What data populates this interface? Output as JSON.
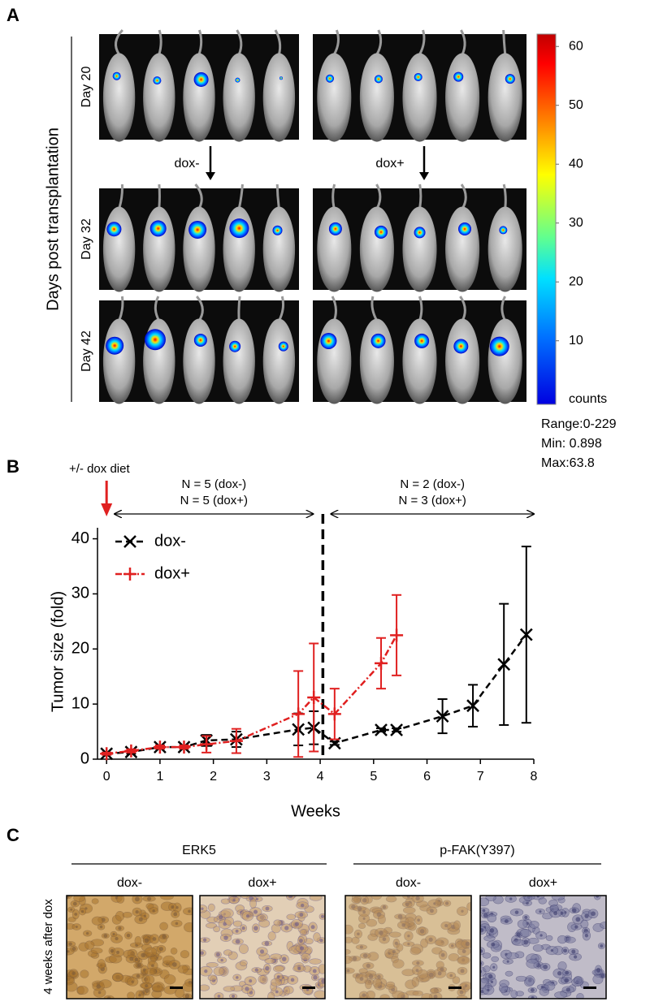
{
  "panel_labels": [
    "A",
    "B",
    "C"
  ],
  "panel_a": {
    "y_label": "Days post transplantation",
    "rows": [
      "Day 20",
      "Day 32",
      "Day 42"
    ],
    "treatments": [
      "dox-",
      "dox+"
    ],
    "colorbar": {
      "label": "counts",
      "ticks": [
        10,
        20,
        30,
        40,
        50,
        60
      ],
      "lim": [
        -0.8,
        62.1
      ]
    },
    "stats": [
      "Range:0-229",
      "Min: 0.898",
      "Max:63.8"
    ]
  },
  "chart_data": {
    "type": "line",
    "diet_label": "+/- dox diet",
    "x_label": "Weeks",
    "y_label": "Tumor size (fold)",
    "xlim": [
      -0.17,
      8
    ],
    "ylim": [
      0,
      42
    ],
    "xticks": [
      0,
      1,
      2,
      3,
      4,
      5,
      6,
      7,
      8
    ],
    "yticks": [
      0,
      10,
      20,
      30,
      40
    ],
    "divider_x": 4.05,
    "annotations": [
      [
        "N = 5 (dox-)",
        "N = 5 (dox+)"
      ],
      [
        "N = 2 (dox-)",
        "N = 3 (dox+)"
      ]
    ],
    "series": [
      {
        "name": "dox-",
        "color": "#000000",
        "marker": "x",
        "line_style": "dashed",
        "x": [
          0,
          0.46,
          1.0,
          1.45,
          1.87,
          2.43,
          3.59,
          3.88,
          4.27,
          5.14,
          5.43,
          6.29,
          6.86,
          7.44,
          7.86
        ],
        "values": [
          1.0,
          1.3,
          2.2,
          2.2,
          3.4,
          3.6,
          5.4,
          5.7,
          2.9,
          5.3,
          5.3,
          7.8,
          9.7,
          17.2,
          22.6
        ],
        "errors": [
          0.2,
          0.3,
          0.3,
          0.3,
          1.0,
          1.4,
          2.9,
          3.0,
          0.3,
          0.3,
          0.3,
          3.1,
          3.8,
          11.0,
          16.0
        ]
      },
      {
        "name": "dox+",
        "color": "#e02020",
        "marker": "+",
        "line_style": "dashdot",
        "x": [
          0,
          0.46,
          1.0,
          1.45,
          1.87,
          2.43,
          3.59,
          3.88,
          4.27,
          5.14,
          5.43
        ],
        "values": [
          1.0,
          1.5,
          2.2,
          2.2,
          2.7,
          3.3,
          8.2,
          11.2,
          8.2,
          17.4,
          22.5
        ],
        "errors": [
          0.2,
          0.3,
          0.3,
          0.3,
          1.5,
          2.2,
          7.8,
          9.8,
          4.6,
          4.6,
          7.3
        ]
      }
    ]
  },
  "panel_c": {
    "row_label": "4 weeks after dox",
    "groups": [
      {
        "title": "ERK5",
        "conditions": [
          "dox-",
          "dox+"
        ]
      },
      {
        "title": "p-FAK(Y397)",
        "conditions": [
          "dox-",
          "dox+"
        ]
      }
    ]
  }
}
